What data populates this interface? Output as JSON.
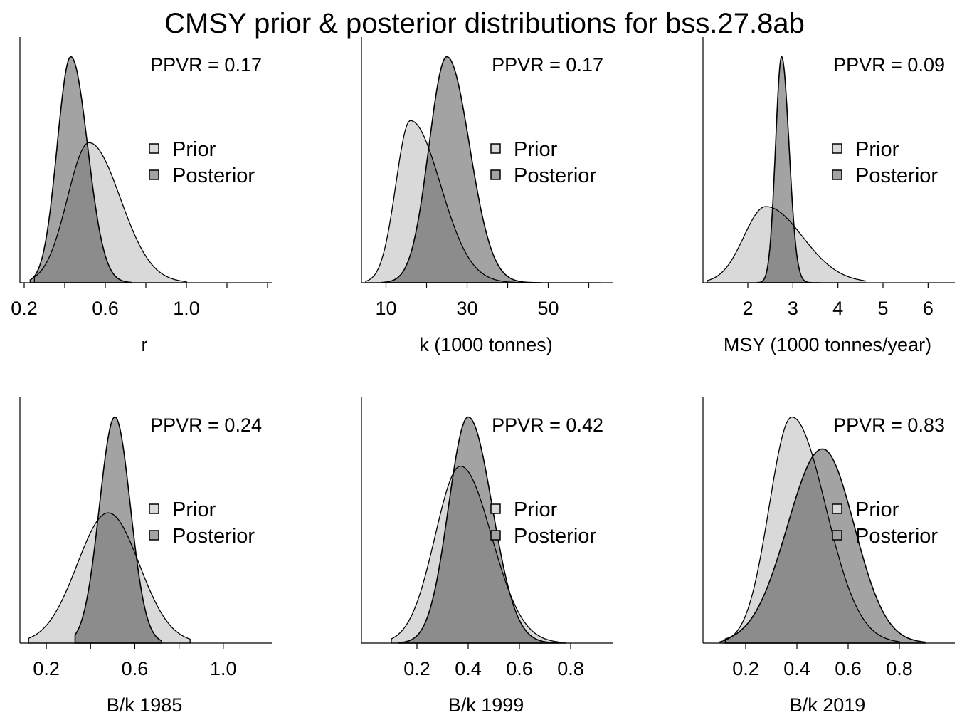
{
  "title": "CMSY prior & posterior distributions for bss.27.8ab",
  "colors": {
    "prior_fill": "#d9d9d9",
    "posterior_fill": "#a3a3a3",
    "overlap_fill": "#8c8c8c",
    "line": "#000000"
  },
  "chart_data": [
    {
      "type": "area",
      "xlabel": "r",
      "ppvr": "PPVR = 0.17",
      "xlim": [
        0.2,
        1.4
      ],
      "ticks": [
        0.2,
        0.6,
        1.0
      ],
      "minor_ticks": [
        0.2,
        0.4,
        0.6,
        0.8,
        1.0,
        1.2,
        1.4
      ],
      "tick_labels": [
        "0.2",
        "0.6",
        "1.0"
      ],
      "legend": [
        "Prior",
        "Posterior"
      ],
      "series": [
        {
          "name": "Prior",
          "mean": 0.52,
          "sd": 0.13,
          "skew": 0.18,
          "from": 0.25,
          "to": 1.0,
          "peak": 0.57
        },
        {
          "name": "Posterior",
          "mean": 0.43,
          "sd": 0.075,
          "skew": 0.1,
          "from": 0.23,
          "to": 0.73,
          "peak": 0.92
        }
      ]
    },
    {
      "type": "area",
      "xlabel": "k (1000 tonnes)",
      "ppvr": "PPVR = 0.17",
      "xlim": [
        5,
        65
      ],
      "ticks": [
        10,
        30,
        50
      ],
      "minor_ticks": [
        10,
        20,
        30,
        40,
        50,
        60
      ],
      "tick_labels": [
        "10",
        "30",
        "50"
      ],
      "legend": [
        "Prior",
        "Posterior"
      ],
      "series": [
        {
          "name": "Prior",
          "mean": 16,
          "sd": 5.5,
          "skew": 0.35,
          "from": 5,
          "to": 63,
          "peak": 0.66
        },
        {
          "name": "Posterior",
          "mean": 25,
          "sd": 5.0,
          "skew": 0.12,
          "from": 9,
          "to": 48,
          "peak": 0.92
        }
      ]
    },
    {
      "type": "area",
      "xlabel": "MSY (1000 tonnes/year)",
      "ppvr": "PPVR = 0.09",
      "xlim": [
        1.1,
        6.5
      ],
      "ticks": [
        2,
        3,
        4,
        5,
        6
      ],
      "minor_ticks": [
        2,
        3,
        4,
        5,
        6
      ],
      "tick_labels": [
        "2",
        "3",
        "4",
        "5",
        "6"
      ],
      "legend": [
        "Prior",
        "Posterior"
      ],
      "series": [
        {
          "name": "Prior",
          "mean": 2.4,
          "sd": 0.65,
          "skew": 0.25,
          "from": 1.1,
          "to": 4.6,
          "peak": 0.31
        },
        {
          "name": "Posterior",
          "mean": 2.75,
          "sd": 0.15,
          "skew": 0.1,
          "from": 2.2,
          "to": 3.6,
          "peak": 0.92
        }
      ]
    },
    {
      "type": "area",
      "xlabel": "B/k 1985",
      "ppvr": "PPVR = 0.24",
      "xlim": [
        0.1,
        1.2
      ],
      "ticks": [
        0.2,
        0.6,
        1.0
      ],
      "minor_ticks": [
        0.2,
        0.4,
        0.6,
        0.8,
        1.0
      ],
      "tick_labels": [
        "0.2",
        "0.6",
        "1.0"
      ],
      "legend": [
        "Prior",
        "Posterior"
      ],
      "series": [
        {
          "name": "Prior",
          "mean": 0.48,
          "sd": 0.14,
          "skew": 0.0,
          "from": 0.12,
          "to": 0.85,
          "peak": 0.53
        },
        {
          "name": "Posterior",
          "mean": 0.51,
          "sd": 0.07,
          "skew": 0.0,
          "from": 0.33,
          "to": 0.72,
          "peak": 0.92
        }
      ]
    },
    {
      "type": "area",
      "xlabel": "B/k 1999",
      "ppvr": "PPVR = 0.42",
      "xlim": [
        0.0,
        0.95
      ],
      "ticks": [
        0.2,
        0.4,
        0.6,
        0.8
      ],
      "minor_ticks": [
        0.2,
        0.4,
        0.6,
        0.8
      ],
      "tick_labels": [
        "0.2",
        "0.4",
        "0.6",
        "0.8"
      ],
      "legend": [
        "Prior",
        "Posterior"
      ],
      "series": [
        {
          "name": "Prior",
          "mean": 0.37,
          "sd": 0.11,
          "skew": 0.1,
          "from": 0.1,
          "to": 0.75,
          "peak": 0.72
        },
        {
          "name": "Posterior",
          "mean": 0.4,
          "sd": 0.085,
          "skew": 0.1,
          "from": 0.13,
          "to": 0.78,
          "peak": 0.92
        }
      ]
    },
    {
      "type": "area",
      "xlabel": "B/k 2019",
      "ppvr": "PPVR = 0.83",
      "xlim": [
        0.05,
        1.0
      ],
      "ticks": [
        0.2,
        0.4,
        0.6,
        0.8
      ],
      "minor_ticks": [
        0.2,
        0.4,
        0.6,
        0.8
      ],
      "tick_labels": [
        "0.2",
        "0.4",
        "0.6",
        "0.8"
      ],
      "legend": [
        "Prior",
        "Posterior"
      ],
      "series": [
        {
          "name": "Prior",
          "mean": 0.38,
          "sd": 0.11,
          "skew": 0.2,
          "from": 0.1,
          "to": 0.8,
          "peak": 0.92
        },
        {
          "name": "Posterior",
          "mean": 0.5,
          "sd": 0.13,
          "skew": -0.05,
          "from": 0.12,
          "to": 0.9,
          "peak": 0.79
        }
      ]
    }
  ]
}
